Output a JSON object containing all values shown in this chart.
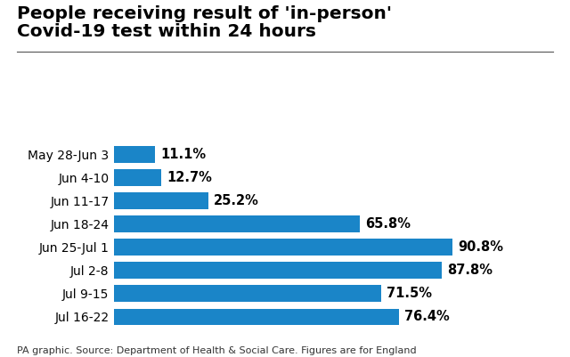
{
  "title_line1": "People receiving result of 'in-person'",
  "title_line2": "Covid-19 test within 24 hours",
  "categories": [
    "May 28-Jun 3",
    "Jun 4-10",
    "Jun 11-17",
    "Jun 18-24",
    "Jun 25-Jul 1",
    "Jul 2-8",
    "Jul 9-15",
    "Jul 16-22"
  ],
  "values": [
    11.1,
    12.7,
    25.2,
    65.8,
    90.8,
    87.8,
    71.5,
    76.4
  ],
  "labels": [
    "11.1%",
    "12.7%",
    "25.2%",
    "65.8%",
    "90.8%",
    "87.8%",
    "71.5%",
    "76.4%"
  ],
  "bar_color": "#1a85c8",
  "background_color": "#ffffff",
  "title_fontsize": 14.5,
  "label_fontsize": 10.5,
  "tick_fontsize": 10,
  "footer": "PA graphic. Source: Department of Health & Social Care. Figures are for England",
  "footer_fontsize": 8,
  "xlim": [
    0,
    110
  ],
  "bar_height": 0.72
}
